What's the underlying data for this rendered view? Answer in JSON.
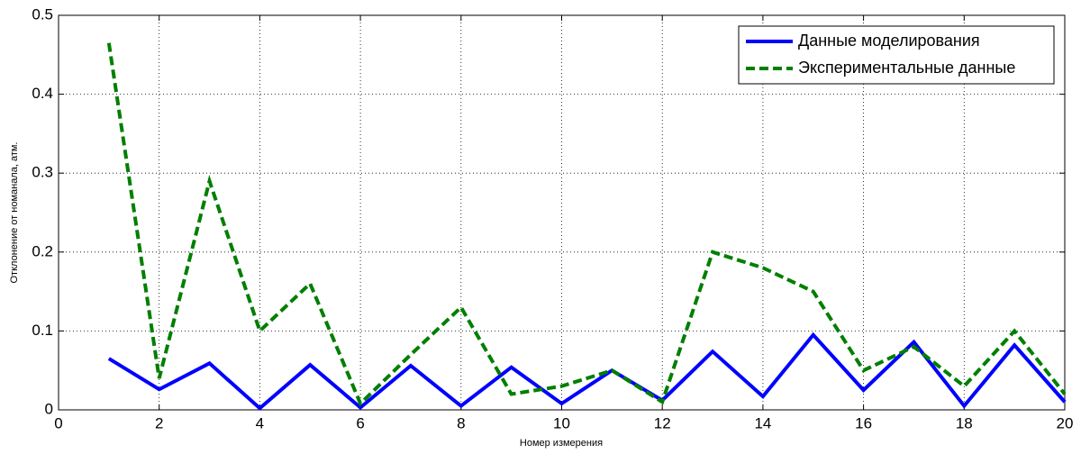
{
  "chart_data": {
    "type": "line",
    "xlabel": "Номер измерения",
    "ylabel": "Отклонение от номанала, атм.",
    "x": [
      1,
      2,
      3,
      4,
      5,
      6,
      7,
      8,
      9,
      10,
      11,
      12,
      13,
      14,
      15,
      16,
      17,
      18,
      19,
      20
    ],
    "series": [
      {
        "name": "Данные моделирования",
        "color": "#0000ff",
        "dash": "solid",
        "values": [
          0.065,
          0.026,
          0.059,
          0.002,
          0.057,
          0.003,
          0.056,
          0.005,
          0.054,
          0.008,
          0.05,
          0.012,
          0.074,
          0.017,
          0.095,
          0.025,
          0.086,
          0.005,
          0.082,
          0.01
        ]
      },
      {
        "name": "Экспериментальные данные",
        "color": "#007f00",
        "dash": "dashed",
        "values": [
          0.465,
          0.04,
          0.29,
          0.1,
          0.16,
          0.008,
          0.07,
          0.13,
          0.02,
          0.03,
          0.05,
          0.01,
          0.2,
          0.18,
          0.15,
          0.05,
          0.08,
          0.03,
          0.1,
          0.02
        ]
      }
    ],
    "xlim": [
      0,
      20
    ],
    "xticks": [
      0,
      2,
      4,
      6,
      8,
      10,
      12,
      14,
      16,
      18,
      20
    ],
    "ylim": [
      0,
      0.5
    ],
    "yticks": [
      0,
      0.1,
      0.2,
      0.3,
      0.4,
      0.5
    ],
    "grid": true,
    "legend": "upper right"
  }
}
